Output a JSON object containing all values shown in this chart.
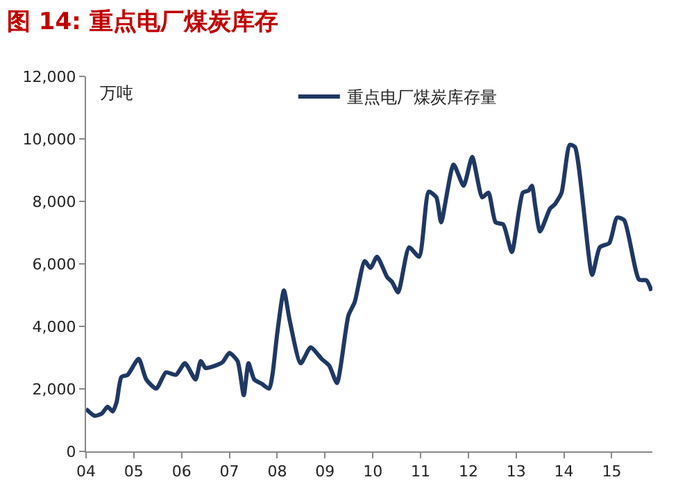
{
  "chart_data": {
    "type": "line",
    "title": "图 14: 重点电厂煤炭库存",
    "ylabel": "万吨",
    "legend": "top",
    "grid": false,
    "marker": "none",
    "line_style": "solid",
    "xlim": [
      2004,
      2015.85
    ],
    "ylim": [
      0,
      12000
    ],
    "xticks": [
      {
        "value": 2004,
        "label": "04"
      },
      {
        "value": 2005,
        "label": "05"
      },
      {
        "value": 2006,
        "label": "06"
      },
      {
        "value": 2007,
        "label": "07"
      },
      {
        "value": 2008,
        "label": "08"
      },
      {
        "value": 2009,
        "label": "09"
      },
      {
        "value": 2010,
        "label": "10"
      },
      {
        "value": 2011,
        "label": "11"
      },
      {
        "value": 2012,
        "label": "12"
      },
      {
        "value": 2013,
        "label": "13"
      },
      {
        "value": 2014,
        "label": "14"
      },
      {
        "value": 2015,
        "label": "15"
      }
    ],
    "yticks": [
      0,
      {
        "value": 2000,
        "label": "2,000"
      },
      {
        "value": 4000,
        "label": "4,000"
      },
      {
        "value": 6000,
        "label": "6,000"
      },
      {
        "value": 8000,
        "label": "8,000"
      },
      {
        "value": 10000,
        "label": "10,000"
      },
      {
        "value": 12000,
        "label": "12,000"
      }
    ],
    "x": [
      2004.0,
      2004.18,
      2004.33,
      2004.45,
      2004.56,
      2004.64,
      2004.74,
      2004.87,
      2005.1,
      2005.26,
      2005.47,
      2005.67,
      2005.88,
      2006.07,
      2006.29,
      2006.4,
      2006.5,
      2006.7,
      2006.86,
      2007.0,
      2007.17,
      2007.3,
      2007.4,
      2007.52,
      2007.68,
      2007.83,
      2007.9,
      2008.0,
      2008.14,
      2008.26,
      2008.49,
      2008.7,
      2008.93,
      2009.09,
      2009.25,
      2009.49,
      2009.62,
      2009.83,
      2009.95,
      2010.09,
      2010.3,
      2010.4,
      2010.53,
      2010.76,
      2010.97,
      2011.17,
      2011.33,
      2011.43,
      2011.69,
      2011.9,
      2012.08,
      2012.29,
      2012.42,
      2012.57,
      2012.73,
      2012.91,
      2013.14,
      2013.26,
      2013.33,
      2013.4,
      2013.5,
      2013.71,
      2013.81,
      2013.95,
      2014.12,
      2014.23,
      2014.59,
      2014.75,
      2014.95,
      2015.11,
      2015.26,
      2015.57,
      2015.73,
      2015.83
    ],
    "series": [
      {
        "name": "重点电厂煤炭库存量",
        "color": "#1f3864",
        "values": [
          1360,
          1140,
          1210,
          1430,
          1280,
          1580,
          2380,
          2450,
          2960,
          2300,
          2010,
          2530,
          2450,
          2820,
          2300,
          2890,
          2670,
          2740,
          2860,
          3150,
          2890,
          1800,
          2820,
          2300,
          2160,
          2010,
          2450,
          3770,
          5150,
          4200,
          2820,
          3330,
          2960,
          2740,
          2190,
          4350,
          4770,
          6090,
          5870,
          6230,
          5580,
          5430,
          5090,
          6530,
          6230,
          8310,
          8130,
          7330,
          9180,
          8500,
          9420,
          8130,
          8280,
          7330,
          7260,
          6380,
          8280,
          8350,
          8500,
          7840,
          7040,
          7770,
          7910,
          8280,
          9810,
          9740,
          5650,
          6530,
          6670,
          7480,
          7400,
          5500,
          5470,
          5140
        ]
      }
    ]
  }
}
